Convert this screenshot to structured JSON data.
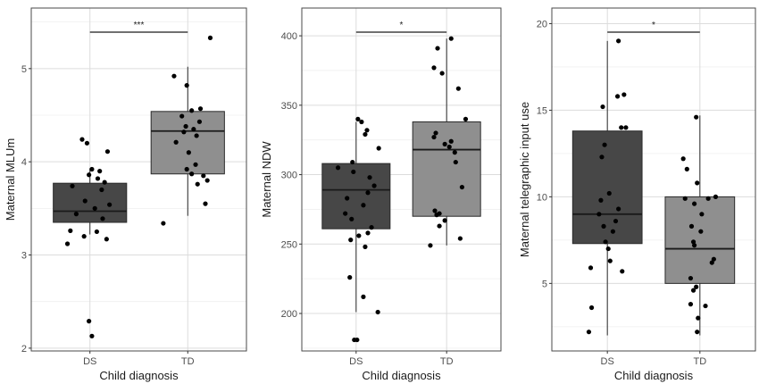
{
  "colors": {
    "ds_box": "#474747",
    "td_box": "#8f8f8f",
    "point": "#000000",
    "grid_major": "#dcdcdc",
    "grid_minor": "#efefef",
    "panel_border": "#4a4a4a"
  },
  "chart_data": [
    {
      "type": "box",
      "xlabel": "Child diagnosis",
      "ylabel": "Maternal MLUm",
      "categories": [
        "DS",
        "TD"
      ],
      "ylim": [
        1.97,
        5.65
      ],
      "yticks": [
        2,
        3,
        4,
        5
      ],
      "grid": true,
      "significance": "***",
      "boxes": [
        {
          "category": "DS",
          "q1": 3.35,
          "median": 3.47,
          "q3": 3.77,
          "whisker_low": 3.22,
          "whisker_high": 3.93
        },
        {
          "category": "TD",
          "q1": 3.87,
          "median": 4.33,
          "q3": 4.54,
          "whisker_low": 3.42,
          "whisker_high": 5.02
        }
      ],
      "points": [
        {
          "category": "DS",
          "offset": -0.08,
          "y": 4.24
        },
        {
          "category": "DS",
          "offset": -0.03,
          "y": 4.2
        },
        {
          "category": "DS",
          "offset": 0.18,
          "y": 4.11
        },
        {
          "category": "DS",
          "offset": 0.02,
          "y": 3.92
        },
        {
          "category": "DS",
          "offset": 0.1,
          "y": 3.9
        },
        {
          "category": "DS",
          "offset": -0.01,
          "y": 3.86
        },
        {
          "category": "DS",
          "offset": 0.08,
          "y": 3.82
        },
        {
          "category": "DS",
          "offset": 0.15,
          "y": 3.78
        },
        {
          "category": "DS",
          "offset": -0.18,
          "y": 3.74
        },
        {
          "category": "DS",
          "offset": 0.12,
          "y": 3.7
        },
        {
          "category": "DS",
          "offset": -0.05,
          "y": 3.58
        },
        {
          "category": "DS",
          "offset": 0.2,
          "y": 3.54
        },
        {
          "category": "DS",
          "offset": 0.05,
          "y": 3.5
        },
        {
          "category": "DS",
          "offset": -0.14,
          "y": 3.44
        },
        {
          "category": "DS",
          "offset": 0.13,
          "y": 3.39
        },
        {
          "category": "DS",
          "offset": -0.2,
          "y": 3.26
        },
        {
          "category": "DS",
          "offset": 0.07,
          "y": 3.25
        },
        {
          "category": "DS",
          "offset": -0.06,
          "y": 3.2
        },
        {
          "category": "DS",
          "offset": 0.17,
          "y": 3.17
        },
        {
          "category": "DS",
          "offset": -0.23,
          "y": 3.12
        },
        {
          "category": "DS",
          "offset": -0.01,
          "y": 2.29
        },
        {
          "category": "DS",
          "offset": 0.02,
          "y": 2.13
        },
        {
          "category": "TD",
          "offset": 0.23,
          "y": 5.33
        },
        {
          "category": "TD",
          "offset": -0.14,
          "y": 4.92
        },
        {
          "category": "TD",
          "offset": -0.01,
          "y": 4.82
        },
        {
          "category": "TD",
          "offset": 0.13,
          "y": 4.57
        },
        {
          "category": "TD",
          "offset": 0.04,
          "y": 4.55
        },
        {
          "category": "TD",
          "offset": -0.06,
          "y": 4.49
        },
        {
          "category": "TD",
          "offset": 0.12,
          "y": 4.43
        },
        {
          "category": "TD",
          "offset": -0.02,
          "y": 4.38
        },
        {
          "category": "TD",
          "offset": 0.06,
          "y": 4.35
        },
        {
          "category": "TD",
          "offset": -0.04,
          "y": 4.32
        },
        {
          "category": "TD",
          "offset": 0.09,
          "y": 4.28
        },
        {
          "category": "TD",
          "offset": -0.12,
          "y": 4.21
        },
        {
          "category": "TD",
          "offset": 0.01,
          "y": 4.1
        },
        {
          "category": "TD",
          "offset": 0.08,
          "y": 3.97
        },
        {
          "category": "TD",
          "offset": -0.01,
          "y": 3.92
        },
        {
          "category": "TD",
          "offset": 0.04,
          "y": 3.87
        },
        {
          "category": "TD",
          "offset": 0.16,
          "y": 3.85
        },
        {
          "category": "TD",
          "offset": 0.2,
          "y": 3.8
        },
        {
          "category": "TD",
          "offset": 0.1,
          "y": 3.76
        },
        {
          "category": "TD",
          "offset": 0.18,
          "y": 3.55
        },
        {
          "category": "TD",
          "offset": -0.25,
          "y": 3.34
        }
      ]
    },
    {
      "type": "box",
      "xlabel": "Child diagnosis",
      "ylabel": "Maternal NDW",
      "categories": [
        "DS",
        "TD"
      ],
      "ylim": [
        173,
        420
      ],
      "yticks": [
        200,
        250,
        300,
        350,
        400
      ],
      "grid": true,
      "significance": "*",
      "boxes": [
        {
          "category": "DS",
          "q1": 261,
          "median": 289,
          "q3": 308,
          "whisker_low": 201,
          "whisker_high": 338
        },
        {
          "category": "TD",
          "q1": 270,
          "median": 318,
          "q3": 338,
          "whisker_low": 249,
          "whisker_high": 398
        }
      ],
      "points": [
        {
          "category": "DS",
          "offset": 0.02,
          "y": 340
        },
        {
          "category": "DS",
          "offset": 0.06,
          "y": 338
        },
        {
          "category": "DS",
          "offset": 0.12,
          "y": 332
        },
        {
          "category": "DS",
          "offset": 0.1,
          "y": 329
        },
        {
          "category": "DS",
          "offset": 0.25,
          "y": 319
        },
        {
          "category": "DS",
          "offset": -0.04,
          "y": 309
        },
        {
          "category": "DS",
          "offset": -0.2,
          "y": 305
        },
        {
          "category": "DS",
          "offset": -0.03,
          "y": 302
        },
        {
          "category": "DS",
          "offset": 0.15,
          "y": 298
        },
        {
          "category": "DS",
          "offset": 0.2,
          "y": 292
        },
        {
          "category": "DS",
          "offset": 0.13,
          "y": 287
        },
        {
          "category": "DS",
          "offset": -0.1,
          "y": 283
        },
        {
          "category": "DS",
          "offset": 0.08,
          "y": 278
        },
        {
          "category": "DS",
          "offset": -0.12,
          "y": 272
        },
        {
          "category": "DS",
          "offset": -0.05,
          "y": 268
        },
        {
          "category": "DS",
          "offset": 0.17,
          "y": 262
        },
        {
          "category": "DS",
          "offset": 0.13,
          "y": 258
        },
        {
          "category": "DS",
          "offset": 0.03,
          "y": 256
        },
        {
          "category": "DS",
          "offset": -0.06,
          "y": 253
        },
        {
          "category": "DS",
          "offset": 0.1,
          "y": 248
        },
        {
          "category": "DS",
          "offset": -0.07,
          "y": 226
        },
        {
          "category": "DS",
          "offset": 0.08,
          "y": 212
        },
        {
          "category": "DS",
          "offset": 0.24,
          "y": 201
        },
        {
          "category": "DS",
          "offset": -0.02,
          "y": 181
        },
        {
          "category": "DS",
          "offset": 0.01,
          "y": 181
        },
        {
          "category": "TD",
          "offset": 0.05,
          "y": 398
        },
        {
          "category": "TD",
          "offset": -0.1,
          "y": 391
        },
        {
          "category": "TD",
          "offset": -0.14,
          "y": 377
        },
        {
          "category": "TD",
          "offset": -0.05,
          "y": 373
        },
        {
          "category": "TD",
          "offset": 0.13,
          "y": 362
        },
        {
          "category": "TD",
          "offset": 0.21,
          "y": 340
        },
        {
          "category": "TD",
          "offset": -0.12,
          "y": 330
        },
        {
          "category": "TD",
          "offset": -0.14,
          "y": 327
        },
        {
          "category": "TD",
          "offset": 0.05,
          "y": 324
        },
        {
          "category": "TD",
          "offset": -0.02,
          "y": 322
        },
        {
          "category": "TD",
          "offset": 0.03,
          "y": 320
        },
        {
          "category": "TD",
          "offset": 0.09,
          "y": 316
        },
        {
          "category": "TD",
          "offset": 0.1,
          "y": 309
        },
        {
          "category": "TD",
          "offset": 0.17,
          "y": 291
        },
        {
          "category": "TD",
          "offset": -0.13,
          "y": 274
        },
        {
          "category": "TD",
          "offset": -0.08,
          "y": 272
        },
        {
          "category": "TD",
          "offset": -0.11,
          "y": 271
        },
        {
          "category": "TD",
          "offset": -0.02,
          "y": 267
        },
        {
          "category": "TD",
          "offset": -0.08,
          "y": 263
        },
        {
          "category": "TD",
          "offset": 0.15,
          "y": 254
        },
        {
          "category": "TD",
          "offset": -0.18,
          "y": 249
        }
      ]
    },
    {
      "type": "box",
      "xlabel": "Child diagnosis",
      "ylabel": "Maternal telegraphic input use",
      "categories": [
        "DS",
        "TD"
      ],
      "ylim": [
        1.1,
        20.9
      ],
      "yticks": [
        5,
        10,
        15,
        20
      ],
      "grid": true,
      "significance": "*",
      "boxes": [
        {
          "category": "DS",
          "q1": 7.3,
          "median": 9.0,
          "q3": 13.8,
          "whisker_low": 2.0,
          "whisker_high": 19.0
        },
        {
          "category": "TD",
          "q1": 5.0,
          "median": 7.0,
          "q3": 10.0,
          "whisker_low": 2.0,
          "whisker_high": 14.7
        }
      ],
      "points": [
        {
          "category": "DS",
          "offset": 0.12,
          "y": 19.0
        },
        {
          "category": "DS",
          "offset": 0.18,
          "y": 15.9
        },
        {
          "category": "DS",
          "offset": 0.11,
          "y": 15.8
        },
        {
          "category": "DS",
          "offset": -0.05,
          "y": 15.2
        },
        {
          "category": "DS",
          "offset": 0.15,
          "y": 14.0
        },
        {
          "category": "DS",
          "offset": 0.2,
          "y": 14.0
        },
        {
          "category": "DS",
          "offset": -0.03,
          "y": 13.0
        },
        {
          "category": "DS",
          "offset": -0.06,
          "y": 12.3
        },
        {
          "category": "DS",
          "offset": 0.02,
          "y": 10.2
        },
        {
          "category": "DS",
          "offset": -0.07,
          "y": 9.8
        },
        {
          "category": "DS",
          "offset": 0.12,
          "y": 9.3
        },
        {
          "category": "DS",
          "offset": -0.09,
          "y": 9.0
        },
        {
          "category": "DS",
          "offset": 0.09,
          "y": 8.6
        },
        {
          "category": "DS",
          "offset": -0.04,
          "y": 8.3
        },
        {
          "category": "DS",
          "offset": 0.06,
          "y": 8.0
        },
        {
          "category": "DS",
          "offset": -0.02,
          "y": 7.4
        },
        {
          "category": "DS",
          "offset": 0.01,
          "y": 7.0
        },
        {
          "category": "DS",
          "offset": 0.03,
          "y": 6.3
        },
        {
          "category": "DS",
          "offset": -0.18,
          "y": 5.9
        },
        {
          "category": "DS",
          "offset": 0.16,
          "y": 5.7
        },
        {
          "category": "DS",
          "offset": -0.17,
          "y": 3.6
        },
        {
          "category": "DS",
          "offset": -0.2,
          "y": 2.2
        },
        {
          "category": "TD",
          "offset": -0.04,
          "y": 14.6
        },
        {
          "category": "TD",
          "offset": -0.18,
          "y": 12.2
        },
        {
          "category": "TD",
          "offset": -0.14,
          "y": 11.6
        },
        {
          "category": "TD",
          "offset": -0.03,
          "y": 10.8
        },
        {
          "category": "TD",
          "offset": 0.17,
          "y": 10.0
        },
        {
          "category": "TD",
          "offset": 0.09,
          "y": 9.9
        },
        {
          "category": "TD",
          "offset": -0.16,
          "y": 9.9
        },
        {
          "category": "TD",
          "offset": -0.06,
          "y": 9.6
        },
        {
          "category": "TD",
          "offset": 0.02,
          "y": 9.0
        },
        {
          "category": "TD",
          "offset": -0.09,
          "y": 8.3
        },
        {
          "category": "TD",
          "offset": 0.01,
          "y": 8.0
        },
        {
          "category": "TD",
          "offset": -0.07,
          "y": 7.4
        },
        {
          "category": "TD",
          "offset": -0.06,
          "y": 7.2
        },
        {
          "category": "TD",
          "offset": 0.15,
          "y": 6.4
        },
        {
          "category": "TD",
          "offset": 0.13,
          "y": 6.2
        },
        {
          "category": "TD",
          "offset": -0.1,
          "y": 5.3
        },
        {
          "category": "TD",
          "offset": -0.04,
          "y": 4.8
        },
        {
          "category": "TD",
          "offset": -0.07,
          "y": 4.6
        },
        {
          "category": "TD",
          "offset": -0.1,
          "y": 3.8
        },
        {
          "category": "TD",
          "offset": 0.06,
          "y": 3.7
        },
        {
          "category": "TD",
          "offset": -0.02,
          "y": 3.0
        },
        {
          "category": "TD",
          "offset": -0.03,
          "y": 2.2
        }
      ]
    }
  ]
}
